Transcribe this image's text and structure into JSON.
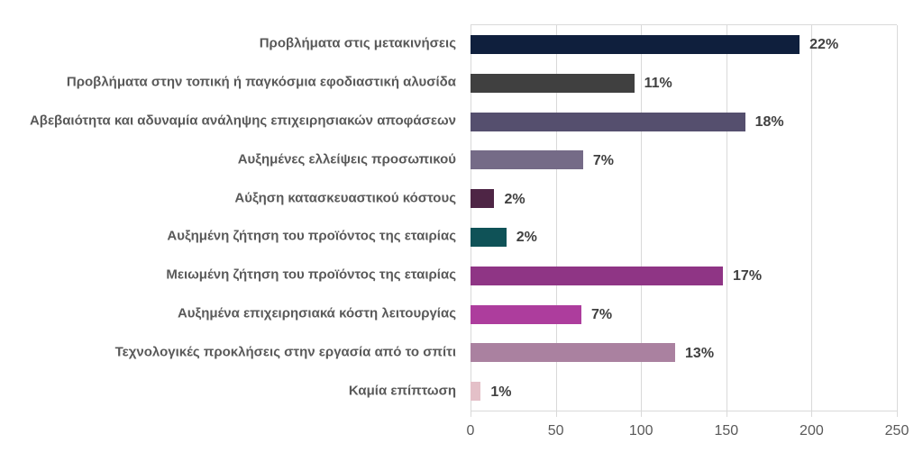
{
  "chart_data": {
    "type": "bar",
    "orientation": "horizontal",
    "title": "",
    "xlabel": "",
    "ylabel": "",
    "grid": true,
    "xlim": [
      0,
      250
    ],
    "x_ticks": [
      0,
      50,
      100,
      150,
      200,
      250
    ],
    "categories": [
      "Προβλήματα στις μετακινήσεις",
      "Προβλήματα στην τοπική ή παγκόσμια εφοδιαστική αλυσίδα",
      "Αβεβαιότητα και αδυναμία ανάληψης επιχειρησιακών αποφάσεων",
      "Αυξημένες ελλείψεις προσωπικού",
      "Αύξηση κατασκευαστικού κόστους",
      "Αυξημένη ζήτηση του προϊόντος της εταιρίας",
      "Μειωμένη ζήτηση του προϊόντος της εταιρίας",
      "Αυξημένα επιχειρησιακά κόστη λειτουργίας",
      "Τεχνολογικές προκλήσεις στην εργασία από το σπίτι",
      "Καμία επίπτωση"
    ],
    "values": [
      193,
      96,
      161,
      66,
      14,
      21,
      148,
      65,
      120,
      6
    ],
    "value_labels": [
      "22%",
      "11%",
      "18%",
      "7%",
      "2%",
      "2%",
      "17%",
      "7%",
      "13%",
      "1%"
    ],
    "bar_colors": [
      "#0f1f3d",
      "#404040",
      "#554f6e",
      "#756b87",
      "#4e2545",
      "#0f5257",
      "#8f3585",
      "#ad3d9d",
      "#aa81a0",
      "#e4c0c8"
    ]
  },
  "styles": {
    "background": "#ffffff",
    "gridline_color": "#d9d9d9",
    "category_label_color": "#595959",
    "value_label_color": "#404040",
    "axis_label_color": "#595959"
  }
}
